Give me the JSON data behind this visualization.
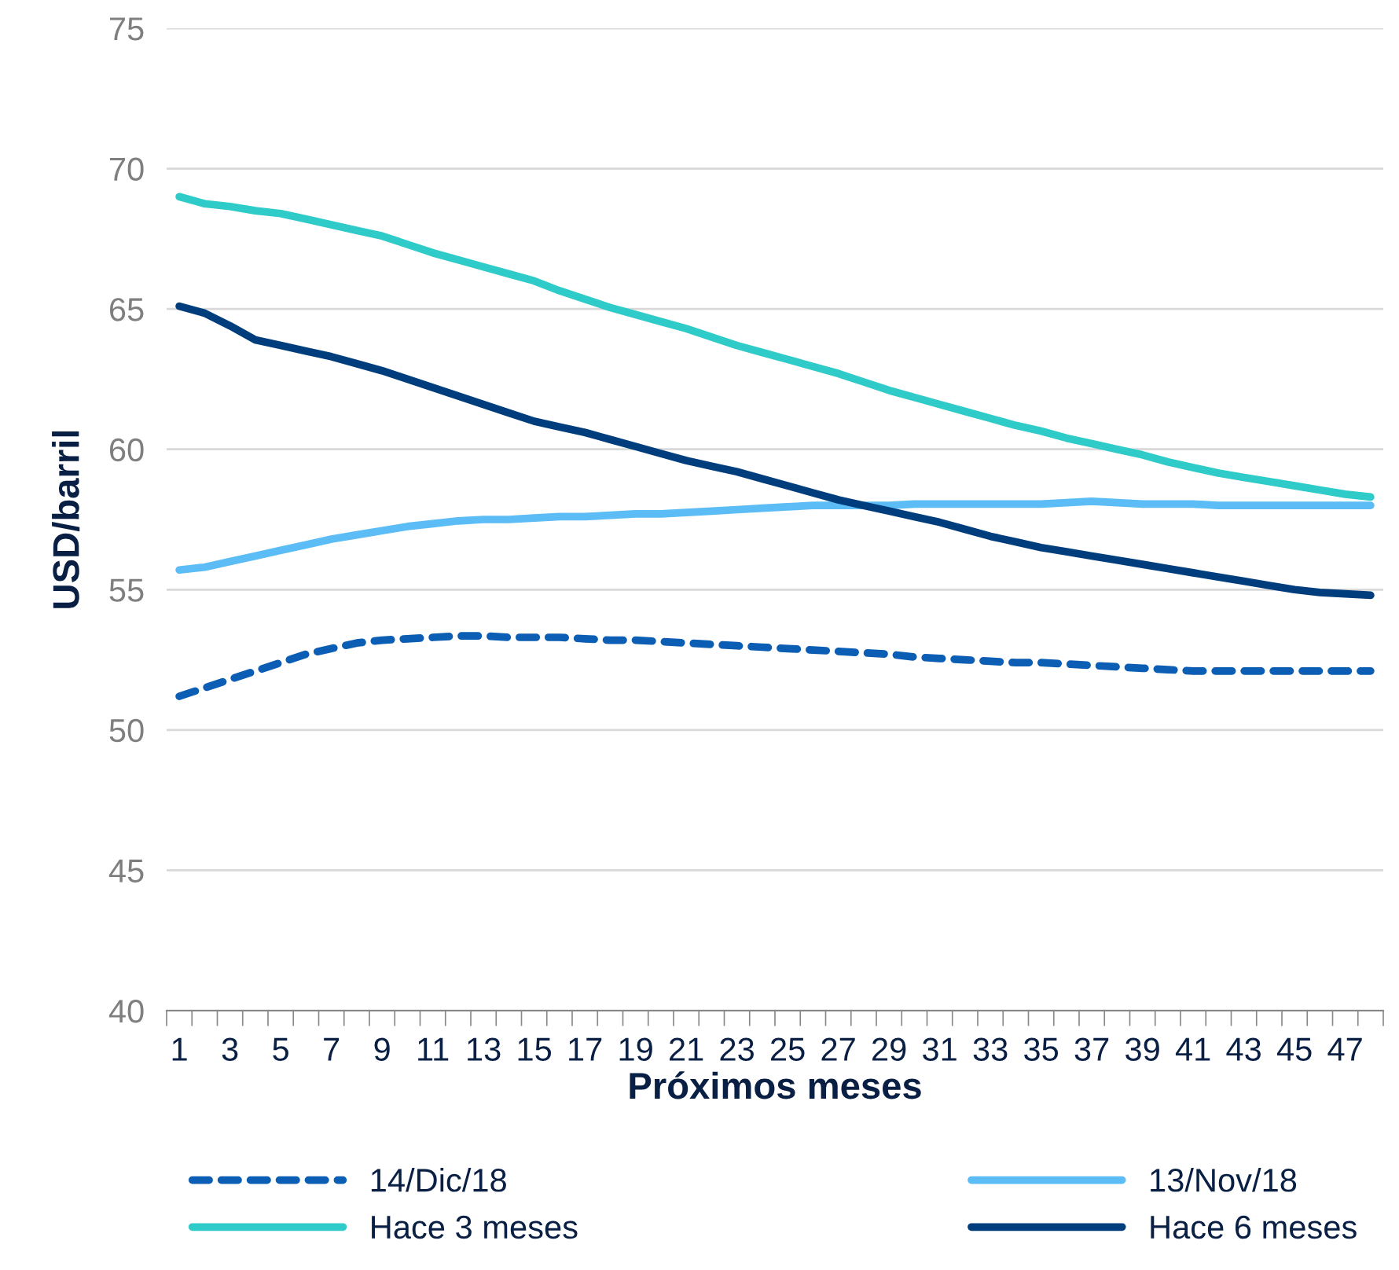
{
  "chart_data": {
    "type": "line",
    "xlabel": "Próximos meses",
    "ylabel": "USD/barril",
    "categories": [
      "1",
      null,
      "3",
      null,
      "5",
      null,
      "7",
      null,
      "9",
      null,
      "11",
      null,
      "13",
      null,
      "15",
      null,
      "17",
      null,
      "19",
      null,
      "21",
      null,
      "23",
      null,
      "25",
      null,
      "27",
      null,
      "29",
      null,
      "31",
      null,
      "33",
      null,
      "35",
      null,
      "37",
      null,
      "39",
      null,
      "41",
      null,
      "43",
      null,
      "45",
      null,
      "47",
      null
    ],
    "ylim": [
      40,
      75
    ],
    "yticks": [
      40,
      45,
      50,
      55,
      60,
      65,
      70,
      75
    ],
    "grid": "y",
    "legend": "bottom",
    "marker": "none",
    "series": [
      {
        "name": "14/Dic/18",
        "color": "#0b5eb3",
        "line_style": "dashed",
        "values": [
          51.2,
          51.5,
          51.8,
          52.1,
          52.4,
          52.7,
          52.9,
          53.1,
          53.2,
          53.25,
          53.3,
          53.35,
          53.35,
          53.3,
          53.3,
          53.3,
          53.25,
          53.2,
          53.2,
          53.15,
          53.1,
          53.05,
          53.0,
          52.95,
          52.9,
          52.85,
          52.8,
          52.75,
          52.7,
          52.6,
          52.55,
          52.5,
          52.45,
          52.4,
          52.4,
          52.35,
          52.3,
          52.25,
          52.2,
          52.15,
          52.1,
          52.1,
          52.1,
          52.1,
          52.1,
          52.1,
          52.1,
          52.1
        ]
      },
      {
        "name": "13/Nov/18",
        "color": "#5bbcf6",
        "line_style": "solid",
        "values": [
          55.7,
          55.8,
          56.0,
          56.2,
          56.4,
          56.6,
          56.8,
          56.95,
          57.1,
          57.25,
          57.35,
          57.45,
          57.5,
          57.5,
          57.55,
          57.6,
          57.6,
          57.65,
          57.7,
          57.7,
          57.75,
          57.8,
          57.85,
          57.9,
          57.95,
          58.0,
          58.0,
          58.0,
          58.0,
          58.05,
          58.05,
          58.05,
          58.05,
          58.05,
          58.05,
          58.1,
          58.15,
          58.1,
          58.05,
          58.05,
          58.05,
          58.0,
          58.0,
          58.0,
          58.0,
          58.0,
          58.0,
          58.0
        ]
      },
      {
        "name": "Hace 3 meses",
        "color": "#2ecbc8",
        "line_style": "solid",
        "values": [
          69.0,
          68.75,
          68.65,
          68.5,
          68.4,
          68.2,
          68.0,
          67.8,
          67.6,
          67.3,
          67.0,
          66.75,
          66.5,
          66.25,
          66.0,
          65.65,
          65.35,
          65.05,
          64.8,
          64.55,
          64.3,
          64.0,
          63.7,
          63.45,
          63.2,
          62.95,
          62.7,
          62.4,
          62.1,
          61.85,
          61.6,
          61.35,
          61.1,
          60.85,
          60.65,
          60.4,
          60.2,
          60.0,
          59.8,
          59.55,
          59.35,
          59.15,
          59.0,
          58.85,
          58.7,
          58.55,
          58.4,
          58.3
        ]
      },
      {
        "name": "Hace 6 meses",
        "color": "#003d7c",
        "line_style": "solid",
        "values": [
          65.1,
          64.85,
          64.4,
          63.9,
          63.7,
          63.5,
          63.3,
          63.05,
          62.8,
          62.5,
          62.2,
          61.9,
          61.6,
          61.3,
          61.0,
          60.8,
          60.6,
          60.35,
          60.1,
          59.85,
          59.6,
          59.4,
          59.2,
          58.95,
          58.7,
          58.45,
          58.2,
          58.0,
          57.8,
          57.6,
          57.4,
          57.15,
          56.9,
          56.7,
          56.5,
          56.35,
          56.2,
          56.05,
          55.9,
          55.75,
          55.6,
          55.45,
          55.3,
          55.15,
          55.0,
          54.9,
          54.85,
          54.8
        ]
      }
    ]
  }
}
